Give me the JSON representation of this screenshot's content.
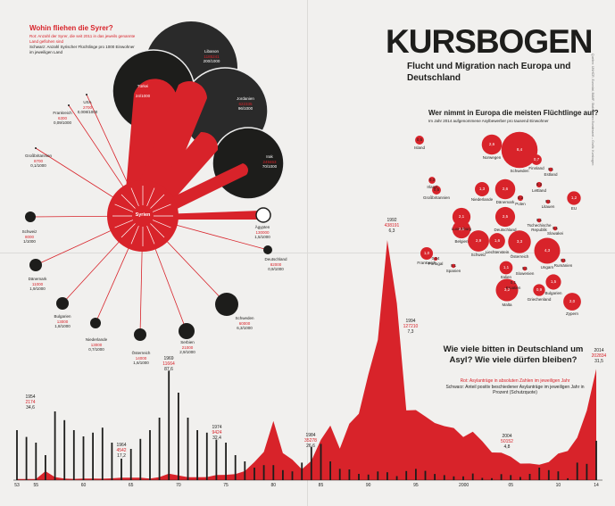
{
  "header": {
    "title": "KURSBOGEN",
    "subtitle": "Flucht und Migration nach Europa und Deutschland"
  },
  "syrien_panel": {
    "question": "Wohin fliehen die Syrer?",
    "legend_red": "Rot: Anzahl der Syrer, die seit 2011 in das jeweils genannte Land geflohen sind",
    "legend_black": "Schwarz: Anzahl Syrischer Flüchtlinge pro 1000 Einwohner im jeweiligen Land",
    "hub": "Syrien",
    "countries": [
      {
        "name": "Libanon",
        "number": "1185241",
        "per1000": "200/1000"
      },
      {
        "name": "Türkei",
        "number": "1805255",
        "per1000": "24/1000"
      },
      {
        "name": "Jordanien",
        "number": "622335",
        "per1000": "96/1000"
      },
      {
        "name": "Irak",
        "number": "249463",
        "per1000": "70/1000"
      },
      {
        "name": "Ägypten",
        "number": "130000",
        "per1000": "1,5/1000"
      },
      {
        "name": "USA",
        "number": "2700",
        "per1000": "0,008/1000"
      },
      {
        "name": "Frankreich",
        "number": "6300",
        "per1000": "0,09/1000"
      },
      {
        "name": "Großbritannien",
        "number": "8700",
        "per1000": "0,1/1000"
      },
      {
        "name": "Schweiz",
        "number": "8000",
        "per1000": "1/1000"
      },
      {
        "name": "Dänemark",
        "number": "11000",
        "per1000": "1,9/1000"
      },
      {
        "name": "Bulgarien",
        "number": "13000",
        "per1000": "1,8/1000"
      },
      {
        "name": "Niederlande",
        "number": "13000",
        "per1000": "0,7/1000"
      },
      {
        "name": "Österreich",
        "number": "14000",
        "per1000": "1,6/1000"
      },
      {
        "name": "Serbien",
        "number": "21000",
        "per1000": "2,9/1000"
      },
      {
        "name": "Schweden",
        "number": "60000",
        "per1000": "6,3/1000"
      },
      {
        "name": "Deutschland",
        "number": "82000",
        "per1000": "0,9/1000"
      }
    ]
  },
  "europe_panel": {
    "question": "Wer nimmt in Europa die meisten Flüchtlinge auf?",
    "sub": "Im Jahr 2014 aufgenommene Asylbewerber pro tausend Einwohner",
    "countries": [
      {
        "name": "Island",
        "value": "0,5"
      },
      {
        "name": "Norwegen",
        "value": "2,6"
      },
      {
        "name": "Schweden",
        "value": "8,4"
      },
      {
        "name": "Finnland",
        "value": "0,7"
      },
      {
        "name": "Estland",
        "value": "0,1"
      },
      {
        "name": "Lettland",
        "value": "0,2"
      },
      {
        "name": "Litauen",
        "value": "0,1"
      },
      {
        "name": "Irland",
        "value": "0,3"
      },
      {
        "name": "Großbritannien",
        "value": "0,5"
      },
      {
        "name": "Niederlande",
        "value": "1,3"
      },
      {
        "name": "Dänemark",
        "value": "2,6"
      },
      {
        "name": "Polen",
        "value": "0,2"
      },
      {
        "name": "EU",
        "value": "1,2"
      },
      {
        "name": "Luxemburg",
        "value": "2,1"
      },
      {
        "name": "Deutschland",
        "value": "2,5"
      },
      {
        "name": "Tschechische Republik",
        "value": "0,1"
      },
      {
        "name": "Belgien",
        "value": "2,1"
      },
      {
        "name": "Slowakei",
        "value": "0,1"
      },
      {
        "name": "Frankreich",
        "value": "1,0"
      },
      {
        "name": "Schweiz",
        "value": "2,9"
      },
      {
        "name": "Liechtenstein",
        "value": "1,6"
      },
      {
        "name": "Österreich",
        "value": "3,3"
      },
      {
        "name": "Ungarn",
        "value": "4,3"
      },
      {
        "name": "Rumänien",
        "value": "0,1"
      },
      {
        "name": "Portugal",
        "value": "0,04"
      },
      {
        "name": "Spanien",
        "value": "0,1"
      },
      {
        "name": "Italien",
        "value": "1,1"
      },
      {
        "name": "Slowenien",
        "value": "0,1"
      },
      {
        "name": "Kroatien",
        "value": "0,1"
      },
      {
        "name": "Bulgarien",
        "value": "1,5"
      },
      {
        "name": "Malta",
        "value": "3,2"
      },
      {
        "name": "Griechenland",
        "value": "0,9"
      },
      {
        "name": "Zypern",
        "value": "2,0"
      }
    ]
  },
  "asyl_panel": {
    "question": "Wie viele bitten in Deutschland um Asyl? Wie viele dürfen bleiben?",
    "legend_red": "Rot: Asylanträge in absoluten Zahlen im jeweiligen Jahr",
    "legend_black": "Schwarz: Anteil positiv beschiedener Asylanträge im jeweiligen Jahr in Prozent (Schutzquote)",
    "annotations": [
      {
        "year": "1954",
        "antraege": "2174",
        "quote": "34,6"
      },
      {
        "year": "1964",
        "antraege": "4542",
        "quote": "17,2"
      },
      {
        "year": "1969",
        "antraege": "11664",
        "quote": "87,6"
      },
      {
        "year": "1974",
        "antraege": "9424",
        "quote": "32,4"
      },
      {
        "year": "1984",
        "antraege": "35278",
        "quote": "26,6"
      },
      {
        "year": "1992",
        "antraege": "438191",
        "quote": "6,3"
      },
      {
        "year": "1994",
        "antraege": "127210",
        "quote": "7,3"
      },
      {
        "year": "2004",
        "antraege": "50152",
        "quote": "4,8"
      },
      {
        "year": "2014",
        "antraege": "202834",
        "quote": "31,5"
      }
    ],
    "axis_ticks": [
      "53",
      "55",
      "60",
      "65",
      "70",
      "75",
      "80",
      "85",
      "90",
      "95",
      "2000",
      "05",
      "10",
      "14"
    ]
  },
  "credit": "Quellen: UNHCR, Eurostat, BAMF, Statistisches Bundesamt – Grafik: Kursbogen",
  "chart_data": {
    "type": "area",
    "title": "Wie viele bitten in Deutschland um Asyl? Wie viele dürfen bleiben?",
    "x": [
      1953,
      1954,
      1955,
      1956,
      1957,
      1958,
      1959,
      1960,
      1961,
      1962,
      1963,
      1964,
      1965,
      1966,
      1967,
      1968,
      1969,
      1970,
      1971,
      1972,
      1973,
      1974,
      1975,
      1976,
      1977,
      1978,
      1979,
      1980,
      1981,
      1982,
      1983,
      1984,
      1985,
      1986,
      1987,
      1988,
      1989,
      1990,
      1991,
      1992,
      1993,
      1994,
      1995,
      1996,
      1997,
      1998,
      1999,
      2000,
      2001,
      2002,
      2003,
      2004,
      2005,
      2006,
      2007,
      2008,
      2009,
      2010,
      2011,
      2012,
      2013,
      2014
    ],
    "series": [
      {
        "name": "Asylanträge",
        "values": [
          1906,
          2174,
          1926,
          16284,
          5622,
          2785,
          2267,
          2980,
          2729,
          2550,
          3238,
          4542,
          4337,
          4370,
          2992,
          5608,
          11664,
          8645,
          5388,
          5289,
          5595,
          9424,
          9627,
          11123,
          16410,
          33136,
          51493,
          107818,
          49391,
          37423,
          19737,
          35278,
          73832,
          99650,
          57379,
          103076,
          121318,
          193063,
          256112,
          438191,
          322599,
          127210,
          127937,
          116367,
          104353,
          98644,
          95113,
          78564,
          88287,
          71127,
          50563,
          50152,
          42908,
          30100,
          30303,
          28018,
          33033,
          48589,
          53347,
          77651,
          127023,
          202834
        ]
      },
      {
        "name": "Schutzquote",
        "values": [
          40,
          34.6,
          30,
          20,
          55,
          48,
          40,
          35,
          38,
          42,
          30,
          17.2,
          25,
          33,
          40,
          50,
          87.6,
          70,
          50,
          40,
          38,
          32.4,
          30,
          20,
          15,
          10,
          12,
          12,
          8,
          7,
          14,
          26.6,
          29,
          15,
          9,
          8.6,
          5,
          4.4,
          6.9,
          6.3,
          3.2,
          7.3,
          9,
          7.4,
          4.9,
          4,
          3,
          3,
          5.3,
          1.8,
          1.6,
          4.8,
          4,
          2.5,
          5,
          10,
          8,
          7,
          1.5,
          14,
          13,
          31.5
        ]
      }
    ],
    "xlabel": "",
    "ylabel": ""
  }
}
